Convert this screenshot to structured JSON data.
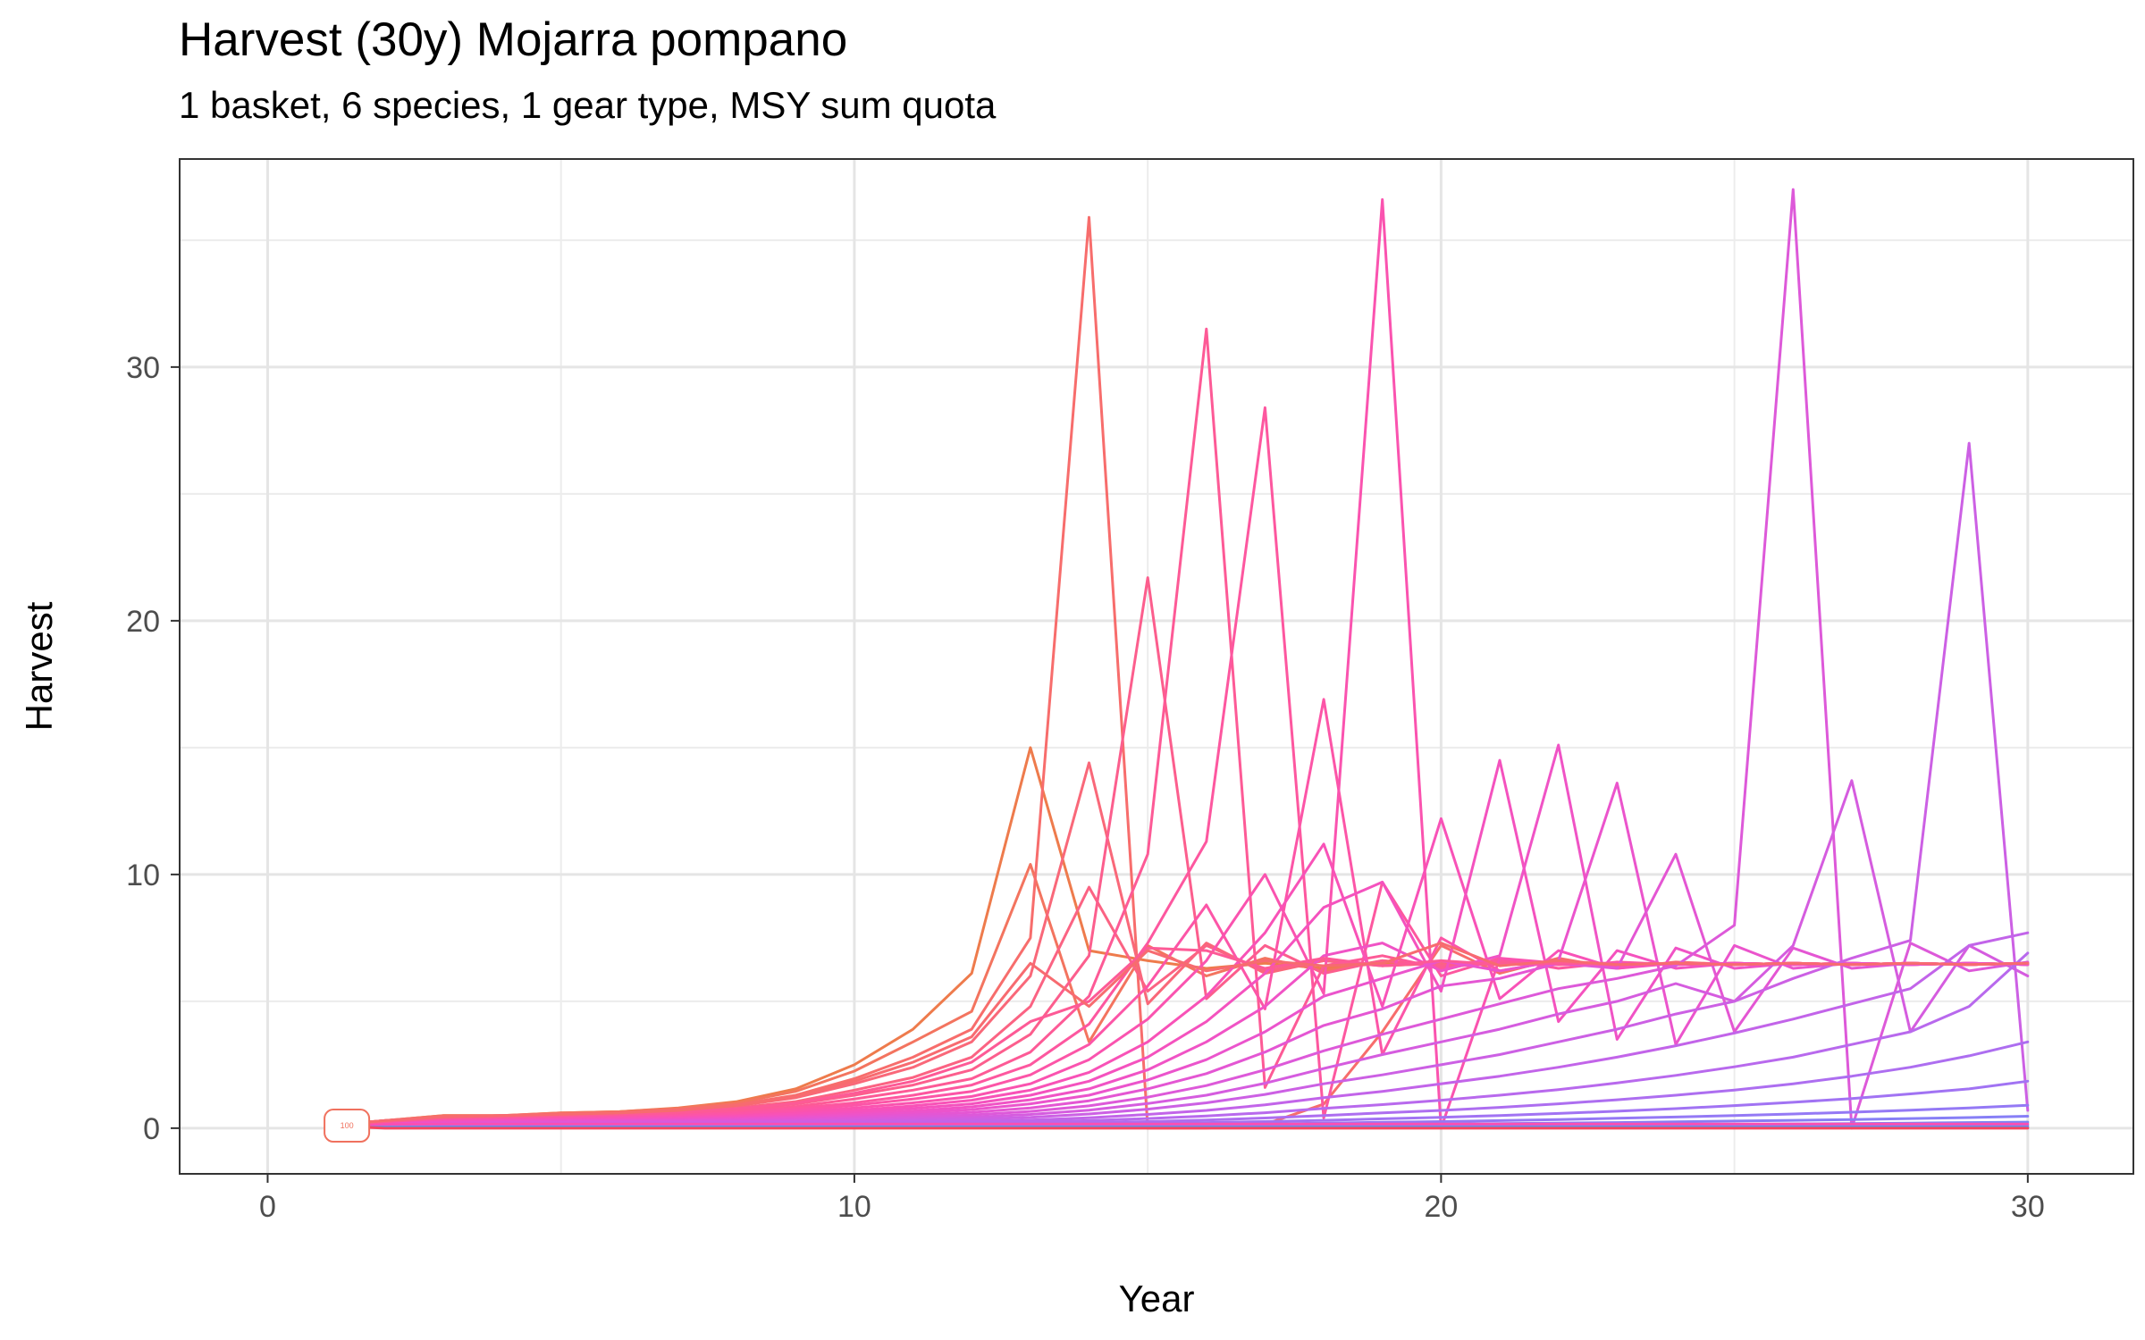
{
  "chart_data": {
    "type": "line",
    "title": "Harvest (30y) Mojarra pompano",
    "subtitle": "1 basket, 6 species, 1 gear type, MSY sum quota",
    "xlabel": "Year",
    "ylabel": "Harvest",
    "xlim": [
      -1.5,
      31.8
    ],
    "ylim": [
      -1.8,
      38.2
    ],
    "x_ticks": [
      0,
      10,
      20,
      30
    ],
    "y_ticks": [
      0,
      10,
      20,
      30
    ],
    "grid": true,
    "legend": "none",
    "point_label": {
      "text": "100",
      "x": 1.35,
      "y": 0.1
    },
    "x": [
      1,
      2,
      3,
      4,
      5,
      6,
      7,
      8,
      9,
      10,
      11,
      12,
      13,
      14,
      15,
      16,
      17,
      18,
      19,
      20,
      21,
      22,
      23,
      24,
      25,
      26,
      27,
      28,
      29,
      30
    ],
    "series": [
      {
        "color": "#ee7b4c",
        "values": [
          0.1,
          0.3,
          0.5,
          0.5,
          0.6,
          0.65,
          0.8,
          1.05,
          1.55,
          2.5,
          3.9,
          6.1,
          15.0,
          7.0,
          6.6,
          6.3,
          6.5,
          6.3,
          6.5,
          6.5,
          6.45,
          6.5,
          6.45,
          6.5,
          6.45,
          6.5,
          6.45,
          6.5,
          6.45,
          6.5
        ]
      },
      {
        "color": "#f3745f",
        "values": [
          0.1,
          0.3,
          0.5,
          0.5,
          0.6,
          0.65,
          0.78,
          1.0,
          1.45,
          2.25,
          3.4,
          4.6,
          10.4,
          3.4,
          7.2,
          6.0,
          6.7,
          6.2,
          6.6,
          6.4,
          6.5,
          6.45,
          6.5,
          6.45,
          6.5,
          6.45,
          6.5,
          6.45,
          6.5,
          6.45
        ]
      },
      {
        "color": "#f76d6c",
        "values": [
          0.1,
          0.3,
          0.45,
          0.5,
          0.55,
          0.6,
          0.72,
          0.93,
          1.3,
          1.95,
          2.8,
          3.9,
          7.5,
          35.9,
          0.0,
          0.0,
          0.15,
          0.95,
          3.8,
          7.2,
          6.1,
          6.7,
          6.3,
          6.55,
          6.45,
          6.5,
          6.45,
          6.5,
          6.45,
          6.5
        ]
      },
      {
        "color": "#f96879",
        "values": [
          0.1,
          0.3,
          0.45,
          0.5,
          0.55,
          0.6,
          0.7,
          0.88,
          1.2,
          1.75,
          2.4,
          3.4,
          6.0,
          14.4,
          4.9,
          7.3,
          6.1,
          6.6,
          6.4,
          6.5,
          6.45,
          6.5,
          6.45,
          6.5,
          6.45,
          6.5,
          6.45,
          6.5,
          6.45,
          6.5
        ]
      },
      {
        "color": "#fb6383",
        "values": [
          0.1,
          0.25,
          0.4,
          0.45,
          0.5,
          0.55,
          0.65,
          0.8,
          1.05,
          1.5,
          2.0,
          2.8,
          4.8,
          9.5,
          5.4,
          7.2,
          6.2,
          6.6,
          6.4,
          6.5,
          6.45,
          6.5,
          6.45,
          6.5,
          6.45,
          6.5,
          6.45,
          6.5,
          6.45,
          6.5
        ]
      },
      {
        "color": "#fc5e8d",
        "values": [
          0.1,
          0.25,
          0.4,
          0.45,
          0.5,
          0.52,
          0.6,
          0.75,
          0.95,
          1.3,
          1.7,
          2.3,
          3.7,
          6.8,
          21.7,
          5.1,
          7.2,
          6.1,
          6.6,
          6.4,
          6.5,
          6.45,
          6.5,
          6.45,
          6.5,
          6.45,
          6.5,
          6.45,
          6.5,
          6.45
        ]
      },
      {
        "color": "#fd5a96",
        "values": [
          0.1,
          0.25,
          0.35,
          0.4,
          0.45,
          0.5,
          0.56,
          0.68,
          0.85,
          1.15,
          1.5,
          1.95,
          3.0,
          5.2,
          10.8,
          31.5,
          1.6,
          6.4,
          6.8,
          6.3,
          6.6,
          6.45,
          6.5,
          6.45,
          6.5,
          6.45,
          6.5,
          6.45,
          6.5,
          6.45
        ]
      },
      {
        "color": "#fd579f",
        "values": [
          0.1,
          0.22,
          0.32,
          0.38,
          0.42,
          0.47,
          0.52,
          0.62,
          0.78,
          1.0,
          1.3,
          1.7,
          2.5,
          4.1,
          7.3,
          11.3,
          28.4,
          0.4,
          9.7,
          6.0,
          6.7,
          6.3,
          6.55,
          6.45,
          6.5,
          6.45,
          6.5,
          6.45,
          6.5,
          6.45
        ]
      },
      {
        "color": "#fc55a7",
        "values": [
          0.1,
          0.2,
          0.3,
          0.35,
          0.4,
          0.44,
          0.48,
          0.56,
          0.7,
          0.9,
          1.15,
          1.45,
          2.1,
          3.3,
          5.6,
          8.8,
          4.7,
          16.9,
          2.9,
          7.5,
          6.2,
          6.6,
          6.4,
          6.5,
          6.45,
          6.5,
          6.45,
          6.5,
          6.45,
          6.5
        ]
      },
      {
        "color": "#fa53af",
        "values": [
          0.1,
          0.2,
          0.28,
          0.33,
          0.37,
          0.4,
          0.44,
          0.5,
          0.62,
          0.8,
          1.0,
          1.25,
          1.75,
          2.7,
          4.3,
          6.6,
          10.0,
          5.3,
          36.6,
          0.0,
          6.7,
          6.5,
          6.5,
          6.45,
          6.5,
          6.45,
          6.5,
          6.45,
          6.5,
          6.45
        ]
      },
      {
        "color": "#f852b7",
        "values": [
          0.1,
          0.18,
          0.26,
          0.3,
          0.34,
          0.37,
          0.4,
          0.46,
          0.56,
          0.7,
          0.88,
          1.1,
          1.5,
          2.2,
          3.4,
          5.2,
          7.7,
          11.2,
          4.8,
          12.2,
          5.1,
          7.0,
          6.3,
          6.5,
          6.45,
          6.5,
          6.45,
          6.5,
          6.45,
          6.5
        ]
      },
      {
        "color": "#f452be",
        "values": [
          0.1,
          0.17,
          0.24,
          0.28,
          0.31,
          0.34,
          0.37,
          0.42,
          0.5,
          0.62,
          0.78,
          0.96,
          1.3,
          1.85,
          2.8,
          4.2,
          6.1,
          8.7,
          9.7,
          5.4,
          14.5,
          4.2,
          7.0,
          6.3,
          6.5,
          6.45,
          6.5,
          6.45,
          6.5,
          6.45
        ]
      },
      {
        "color": "#f053c5",
        "values": [
          0.1,
          0.16,
          0.22,
          0.26,
          0.29,
          0.31,
          0.34,
          0.38,
          0.45,
          0.55,
          0.68,
          0.84,
          1.12,
          1.55,
          2.3,
          3.4,
          4.8,
          6.8,
          7.3,
          6.2,
          6.8,
          15.1,
          3.5,
          7.1,
          6.3,
          6.5,
          6.45,
          6.5,
          6.45,
          6.5
        ]
      },
      {
        "color": "#eb54cc",
        "values": [
          0.1,
          0.15,
          0.2,
          0.24,
          0.27,
          0.29,
          0.31,
          0.35,
          0.41,
          0.49,
          0.6,
          0.73,
          0.96,
          1.3,
          1.9,
          2.7,
          3.8,
          5.2,
          5.9,
          6.6,
          6.2,
          6.6,
          13.6,
          3.3,
          7.2,
          6.3,
          6.5,
          6.45,
          6.5,
          6.45
        ]
      },
      {
        "color": "#e456d3",
        "values": [
          0.1,
          0.14,
          0.18,
          0.22,
          0.24,
          0.26,
          0.28,
          0.31,
          0.36,
          0.43,
          0.52,
          0.62,
          0.8,
          1.08,
          1.55,
          2.15,
          3.0,
          4.05,
          4.7,
          5.6,
          5.9,
          6.5,
          6.3,
          10.8,
          3.8,
          7.1,
          6.3,
          6.5,
          6.45,
          6.5
        ]
      },
      {
        "color": "#dd59d9",
        "values": [
          0.1,
          0.13,
          0.16,
          0.19,
          0.21,
          0.23,
          0.25,
          0.27,
          0.31,
          0.37,
          0.44,
          0.52,
          0.66,
          0.88,
          1.22,
          1.68,
          2.3,
          3.05,
          3.7,
          4.3,
          4.9,
          5.5,
          5.9,
          6.4,
          8.0,
          37.0,
          0.0,
          7.3,
          6.2,
          6.55
        ]
      },
      {
        "color": "#d55cdf",
        "values": [
          0.1,
          0.12,
          0.15,
          0.17,
          0.19,
          0.2,
          0.22,
          0.24,
          0.27,
          0.31,
          0.37,
          0.43,
          0.54,
          0.71,
          0.97,
          1.3,
          1.77,
          2.35,
          2.9,
          3.4,
          3.9,
          4.5,
          5.0,
          5.7,
          5.0,
          7.2,
          13.7,
          3.8,
          7.2,
          6.0
        ]
      },
      {
        "color": "#cc60e4",
        "values": [
          0.1,
          0.11,
          0.13,
          0.15,
          0.16,
          0.18,
          0.19,
          0.2,
          0.23,
          0.26,
          0.3,
          0.35,
          0.43,
          0.56,
          0.75,
          1.0,
          1.33,
          1.75,
          2.1,
          2.5,
          2.9,
          3.4,
          3.9,
          4.5,
          5.0,
          5.9,
          6.7,
          7.4,
          27.0,
          0.7
        ]
      },
      {
        "color": "#c264e9",
        "values": [
          0.1,
          0.1,
          0.12,
          0.13,
          0.14,
          0.15,
          0.16,
          0.17,
          0.19,
          0.21,
          0.24,
          0.27,
          0.32,
          0.41,
          0.54,
          0.7,
          0.92,
          1.2,
          1.45,
          1.75,
          2.05,
          2.4,
          2.8,
          3.25,
          3.75,
          4.3,
          4.9,
          5.5,
          7.2,
          7.7
        ]
      },
      {
        "color": "#b869ed",
        "values": [
          0.1,
          0.09,
          0.1,
          0.11,
          0.12,
          0.12,
          0.13,
          0.14,
          0.15,
          0.17,
          0.19,
          0.21,
          0.25,
          0.3,
          0.38,
          0.48,
          0.61,
          0.78,
          0.93,
          1.1,
          1.3,
          1.52,
          1.78,
          2.08,
          2.42,
          2.8,
          3.3,
          3.8,
          4.8,
          6.9
        ]
      },
      {
        "color": "#ad6ef0",
        "values": [
          0.1,
          0.08,
          0.09,
          0.09,
          0.1,
          0.1,
          0.11,
          0.11,
          0.12,
          0.13,
          0.14,
          0.16,
          0.18,
          0.21,
          0.26,
          0.32,
          0.4,
          0.5,
          0.6,
          0.7,
          0.82,
          0.96,
          1.12,
          1.3,
          1.5,
          1.75,
          2.05,
          2.4,
          2.85,
          3.4
        ]
      },
      {
        "color": "#a173f3",
        "values": [
          0.1,
          0.07,
          0.07,
          0.08,
          0.08,
          0.08,
          0.09,
          0.09,
          0.1,
          0.1,
          0.11,
          0.12,
          0.13,
          0.15,
          0.18,
          0.22,
          0.26,
          0.31,
          0.37,
          0.43,
          0.5,
          0.58,
          0.67,
          0.77,
          0.89,
          1.02,
          1.17,
          1.35,
          1.55,
          1.85
        ]
      },
      {
        "color": "#9479f5",
        "values": [
          0.1,
          0.06,
          0.06,
          0.06,
          0.07,
          0.07,
          0.07,
          0.07,
          0.08,
          0.08,
          0.09,
          0.09,
          0.1,
          0.11,
          0.13,
          0.15,
          0.17,
          0.2,
          0.23,
          0.26,
          0.3,
          0.34,
          0.39,
          0.44,
          0.5,
          0.56,
          0.63,
          0.71,
          0.8,
          0.9
        ]
      },
      {
        "color": "#877ff6",
        "values": [
          0.1,
          0.06,
          0.05,
          0.05,
          0.06,
          0.06,
          0.06,
          0.06,
          0.06,
          0.07,
          0.07,
          0.07,
          0.08,
          0.08,
          0.09,
          0.1,
          0.11,
          0.13,
          0.14,
          0.16,
          0.18,
          0.2,
          0.22,
          0.25,
          0.28,
          0.31,
          0.34,
          0.38,
          0.42,
          0.47
        ]
      },
      {
        "color": "#7986f6",
        "values": [
          0.1,
          0.05,
          0.05,
          0.05,
          0.05,
          0.05,
          0.05,
          0.05,
          0.05,
          0.05,
          0.06,
          0.06,
          0.06,
          0.06,
          0.07,
          0.07,
          0.08,
          0.08,
          0.09,
          0.1,
          0.11,
          0.12,
          0.13,
          0.14,
          0.15,
          0.17,
          0.18,
          0.2,
          0.22,
          0.24
        ]
      },
      {
        "color": "#6b8cf6",
        "values": [
          0.1,
          0.04,
          0.04,
          0.04,
          0.04,
          0.04,
          0.04,
          0.04,
          0.04,
          0.04,
          0.04,
          0.05,
          0.05,
          0.05,
          0.05,
          0.05,
          0.05,
          0.06,
          0.06,
          0.06,
          0.06,
          0.07,
          0.07,
          0.07,
          0.08,
          0.08,
          0.09,
          0.09,
          0.1,
          0.1
        ]
      },
      {
        "color": "#5c91f5",
        "values": [
          0.1,
          0.03,
          0.03,
          0.03,
          0.03,
          0.03,
          0.03,
          0.03,
          0.03,
          0.03,
          0.03,
          0.03,
          0.03,
          0.03,
          0.03,
          0.03,
          0.03,
          0.03,
          0.03,
          0.03,
          0.03,
          0.03,
          0.03,
          0.03,
          0.03,
          0.03,
          0.03,
          0.03,
          0.03,
          0.03
        ]
      },
      {
        "color": "#4c97f3",
        "values": [
          0.1,
          0.02,
          0.02,
          0.02,
          0.02,
          0.02,
          0.02,
          0.02,
          0.02,
          0.02,
          0.02,
          0.02,
          0.02,
          0.02,
          0.02,
          0.02,
          0.02,
          0.02,
          0.02,
          0.02,
          0.02,
          0.02,
          0.02,
          0.02,
          0.02,
          0.02,
          0.02,
          0.02,
          0.02,
          0.02
        ]
      },
      {
        "color": "#fa4fb2",
        "values": [
          0.1,
          0.15,
          0.16,
          0.16,
          0.16,
          0.16,
          0.16,
          0.16,
          0.16,
          0.16,
          0.16,
          0.16,
          0.16,
          0.16,
          0.16,
          0.16,
          0.16,
          0.16,
          0.16,
          0.16,
          0.16,
          0.16,
          0.16,
          0.16,
          0.16,
          0.16,
          0.16,
          0.16,
          0.16,
          0.16
        ]
      },
      {
        "color": "#f5455f",
        "values": [
          0.1,
          0.0,
          0.0,
          0.0,
          0.0,
          0.0,
          0.0,
          0.0,
          0.0,
          0.0,
          0.0,
          0.0,
          0.0,
          0.0,
          0.0,
          0.0,
          0.0,
          0.0,
          0.0,
          0.0,
          0.0,
          0.0,
          0.0,
          0.0,
          0.0,
          0.0,
          0.0,
          0.0,
          0.0,
          0.0
        ]
      },
      {
        "color": "#fd5a96",
        "values": [
          0.1,
          0.25,
          0.4,
          0.45,
          0.5,
          0.55,
          0.62,
          0.76,
          0.98,
          1.38,
          1.85,
          2.6,
          4.2,
          5.0,
          7.1,
          7.0,
          6.3,
          6.7,
          6.4,
          6.6,
          6.45,
          6.5,
          6.45,
          6.5,
          6.45,
          6.5,
          6.45,
          6.5,
          6.45,
          6.5
        ]
      },
      {
        "color": "#f76b70",
        "values": [
          0.1,
          0.3,
          0.45,
          0.5,
          0.55,
          0.6,
          0.7,
          0.9,
          1.25,
          1.85,
          2.6,
          3.6,
          6.5,
          4.8,
          7.0,
          6.2,
          6.6,
          6.4,
          6.5,
          7.3,
          6.4,
          6.6,
          6.45,
          6.5,
          6.45,
          6.5,
          6.45,
          6.5,
          6.45,
          6.5
        ]
      }
    ]
  }
}
